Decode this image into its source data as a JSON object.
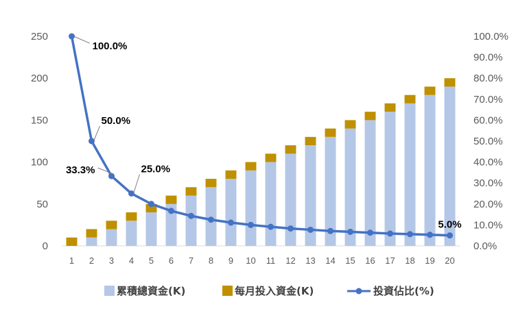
{
  "chart_data": {
    "type": "bar",
    "categories": [
      "1",
      "2",
      "3",
      "4",
      "5",
      "6",
      "7",
      "8",
      "9",
      "10",
      "11",
      "12",
      "13",
      "14",
      "15",
      "16",
      "17",
      "18",
      "19",
      "20"
    ],
    "series": [
      {
        "name": "累積總資金(K)",
        "type": "bar",
        "color": "#B4C7E7",
        "values": [
          0,
          10,
          20,
          30,
          40,
          50,
          60,
          70,
          80,
          90,
          100,
          110,
          120,
          130,
          140,
          150,
          160,
          170,
          180,
          190
        ]
      },
      {
        "name": "每月投入資金(K)",
        "type": "bar",
        "color": "#BF9000",
        "values": [
          10,
          10,
          10,
          10,
          10,
          10,
          10,
          10,
          10,
          10,
          10,
          10,
          10,
          10,
          10,
          10,
          10,
          10,
          10,
          10
        ]
      },
      {
        "name": "投資佔比(%)",
        "type": "line",
        "color": "#4472C4",
        "axis": "right",
        "values": [
          100.0,
          50.0,
          33.3,
          25.0,
          20.0,
          16.7,
          14.3,
          12.5,
          11.1,
          10.0,
          9.1,
          8.3,
          7.7,
          7.1,
          6.7,
          6.3,
          5.9,
          5.6,
          5.3,
          5.0
        ]
      }
    ],
    "stacked": true,
    "ylim": [
      0,
      250
    ],
    "yticks": [
      "0",
      "50",
      "100",
      "150",
      "200",
      "250"
    ],
    "y2lim": [
      0,
      100
    ],
    "y2ticks": [
      "0.0%",
      "10.0%",
      "20.0%",
      "30.0%",
      "40.0%",
      "50.0%",
      "60.0%",
      "70.0%",
      "80.0%",
      "90.0%",
      "100.0%"
    ],
    "data_labels": [
      {
        "index": 0,
        "text": "100.0%"
      },
      {
        "index": 1,
        "text": "50.0%"
      },
      {
        "index": 2,
        "text": "33.3%"
      },
      {
        "index": 3,
        "text": "25.0%"
      },
      {
        "index": 19,
        "text": "5.0%"
      }
    ],
    "grid": false,
    "legend": "bottom"
  }
}
